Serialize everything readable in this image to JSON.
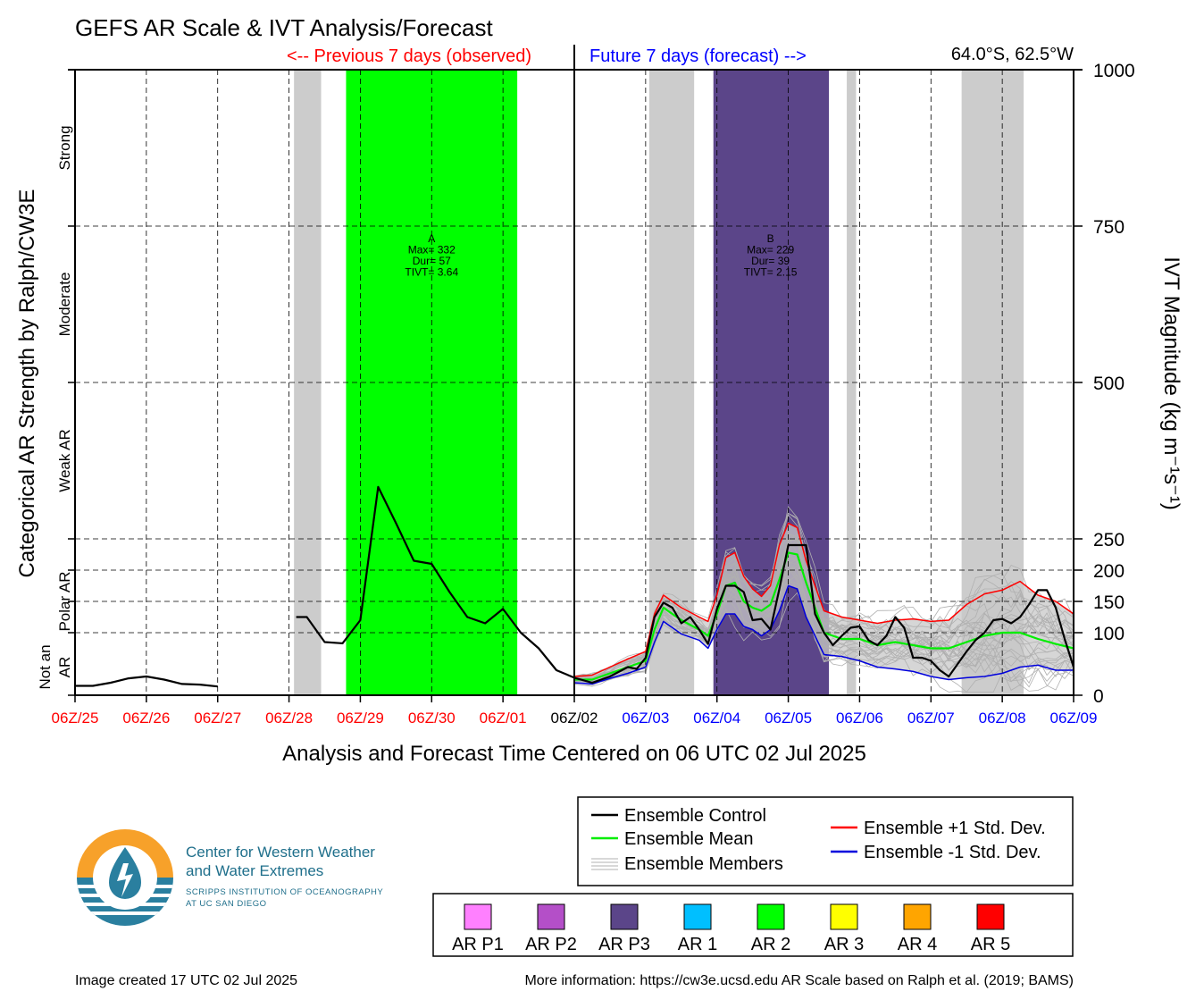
{
  "page": {
    "title": "GEFS AR Scale & IVT Analysis/Forecast",
    "prev_label": "<-- Previous 7 days (observed)",
    "future_label": "Future 7 days (forecast) -->",
    "location": "64.0°S, 62.5°W",
    "image_created": "Image created 17 UTC 02 Jul 2025",
    "more_info": "More information: https://cw3e.ucsd.edu AR Scale based on Ralph et al. (2019; BAMS)"
  },
  "colors": {
    "past_tick": "#ff0000",
    "future_tick": "#0000ff",
    "now_tick": "#000000",
    "control": "#000000",
    "mean": "#00ee00",
    "plus_std": "#ff0000",
    "minus_std": "#0000dd",
    "members": "#b0b0b0",
    "spread_fill": "#c8c8c8",
    "shade_gray": "#cccccc",
    "ar2": "#00ff00",
    "arp3": "#5b4589"
  },
  "logo": {
    "line1": "Center for Western Weather",
    "line2": "and Water Extremes",
    "line3": "SCRIPPS INSTITUTION OF OCEANOGRAPHY",
    "line4": "AT UC SAN DIEGO"
  },
  "legend": {
    "lines": [
      {
        "label": "Ensemble Control",
        "color": "#000000"
      },
      {
        "label": "Ensemble Mean",
        "color": "#00ee00"
      },
      {
        "label": "Ensemble Members",
        "color": "#b0b0b0"
      },
      {
        "label": "Ensemble +1 Std. Dev.",
        "color": "#ff0000"
      },
      {
        "label": "Ensemble -1 Std. Dev.",
        "color": "#0000dd"
      }
    ],
    "scale": [
      {
        "label": "AR P1",
        "color": "#ff80ff"
      },
      {
        "label": "AR P2",
        "color": "#b44fc8"
      },
      {
        "label": "AR P3",
        "color": "#5b4589"
      },
      {
        "label": "AR 1",
        "color": "#00bfff"
      },
      {
        "label": "AR 2",
        "color": "#00ff00"
      },
      {
        "label": "AR 3",
        "color": "#ffff00"
      },
      {
        "label": "AR 4",
        "color": "#ffa500"
      },
      {
        "label": "AR 5",
        "color": "#ff0000"
      }
    ]
  },
  "chart_data": {
    "type": "line",
    "xlabel": "Analysis and Forecast Time Centered on 06 UTC 02 Jul 2025",
    "ylabel_left": "Categorical AR Strength by Ralph/CW3E",
    "ylabel_right": "IVT Magnitude (kg m⁻¹s⁻¹)",
    "xlim": [
      -7,
      7
    ],
    "ylim": [
      0,
      1000
    ],
    "x_ticks": [
      {
        "x": -7,
        "label": "06Z/25",
        "kind": "past"
      },
      {
        "x": -6,
        "label": "06Z/26",
        "kind": "past"
      },
      {
        "x": -5,
        "label": "06Z/27",
        "kind": "past"
      },
      {
        "x": -4,
        "label": "06Z/28",
        "kind": "past"
      },
      {
        "x": -3,
        "label": "06Z/29",
        "kind": "past"
      },
      {
        "x": -2,
        "label": "06Z/30",
        "kind": "past"
      },
      {
        "x": -1,
        "label": "06Z/01",
        "kind": "past"
      },
      {
        "x": 0,
        "label": "06Z/02",
        "kind": "now"
      },
      {
        "x": 1,
        "label": "06Z/03",
        "kind": "future"
      },
      {
        "x": 2,
        "label": "06Z/04",
        "kind": "future"
      },
      {
        "x": 3,
        "label": "06Z/05",
        "kind": "future"
      },
      {
        "x": 4,
        "label": "06Z/06",
        "kind": "future"
      },
      {
        "x": 5,
        "label": "06Z/07",
        "kind": "future"
      },
      {
        "x": 6,
        "label": "06Z/08",
        "kind": "future"
      },
      {
        "x": 7,
        "label": "06Z/09",
        "kind": "future"
      }
    ],
    "y_ticks": [
      0,
      100,
      150,
      200,
      250,
      500,
      750,
      1000
    ],
    "categories": [
      {
        "label": "Not an",
        "y": 45
      },
      {
        "label": "AR",
        "y": 45
      },
      {
        "label": "Polar AR",
        "y": 150
      },
      {
        "label": "Weak AR",
        "y": 375
      },
      {
        "label": "Moderate",
        "y": 625
      },
      {
        "label": "Strong",
        "y": 875
      }
    ],
    "shaded_periods": [
      {
        "start": -3.93,
        "end": -3.55,
        "kind": "gray"
      },
      {
        "start": -3.2,
        "end": -0.8,
        "kind": "ar2"
      },
      {
        "start": 1.05,
        "end": 1.68,
        "kind": "gray"
      },
      {
        "start": 1.95,
        "end": 3.57,
        "kind": "arp3"
      },
      {
        "start": 3.82,
        "end": 3.95,
        "kind": "gray"
      },
      {
        "start": 5.43,
        "end": 6.3,
        "kind": "gray"
      }
    ],
    "events": [
      {
        "letter": "A",
        "max": "Max= 332",
        "dur": "Dur= 57",
        "tivt": "TIVT= 3.64",
        "x": -2.0,
        "y": 740
      },
      {
        "letter": "B",
        "max": "Max= 229",
        "dur": "Dur= 39",
        "tivt": "TIVT= 2.15",
        "x": 2.75,
        "y": 740
      }
    ],
    "series": {
      "control_past_a": [
        [
          -7,
          15
        ],
        [
          -6.75,
          15
        ],
        [
          -6.5,
          20
        ],
        [
          -6.25,
          27
        ],
        [
          -6,
          30
        ],
        [
          -5.75,
          25
        ],
        [
          -5.5,
          18
        ],
        [
          -5.25,
          17
        ],
        [
          -5,
          14
        ]
      ],
      "control_past_b": [
        [
          -3.9,
          125
        ],
        [
          -3.75,
          125
        ],
        [
          -3.5,
          85
        ],
        [
          -3.25,
          83
        ],
        [
          -3,
          120
        ],
        [
          -2.75,
          333
        ],
        [
          -2.5,
          275
        ],
        [
          -2.25,
          215
        ],
        [
          -2,
          210
        ],
        [
          -1.75,
          165
        ],
        [
          -1.5,
          125
        ],
        [
          -1.25,
          115
        ],
        [
          -1,
          138
        ],
        [
          -0.75,
          100
        ],
        [
          -0.5,
          75
        ],
        [
          -0.25,
          40
        ],
        [
          0,
          28
        ]
      ],
      "control_future": [
        [
          0,
          28
        ],
        [
          0.25,
          20
        ],
        [
          0.5,
          30
        ],
        [
          0.75,
          45
        ],
        [
          0.875,
          42
        ],
        [
          1,
          60
        ],
        [
          1.125,
          125
        ],
        [
          1.25,
          148
        ],
        [
          1.375,
          140
        ],
        [
          1.5,
          115
        ],
        [
          1.625,
          125
        ],
        [
          1.75,
          105
        ],
        [
          1.875,
          82
        ],
        [
          2,
          138
        ],
        [
          2.125,
          175
        ],
        [
          2.25,
          175
        ],
        [
          2.375,
          165
        ],
        [
          2.5,
          120
        ],
        [
          2.625,
          122
        ],
        [
          2.75,
          105
        ],
        [
          2.875,
          170
        ],
        [
          3,
          240
        ],
        [
          3.125,
          240
        ],
        [
          3.25,
          240
        ],
        [
          3.375,
          130
        ],
        [
          3.5,
          100
        ],
        [
          3.625,
          80
        ],
        [
          3.75,
          95
        ],
        [
          3.875,
          108
        ],
        [
          4,
          110
        ],
        [
          4.125,
          88
        ],
        [
          4.25,
          80
        ],
        [
          4.375,
          95
        ],
        [
          4.5,
          125
        ],
        [
          4.625,
          108
        ],
        [
          4.75,
          60
        ],
        [
          4.875,
          60
        ],
        [
          5,
          55
        ],
        [
          5.125,
          40
        ],
        [
          5.25,
          30
        ],
        [
          5.375,
          50
        ],
        [
          5.5,
          70
        ],
        [
          5.625,
          88
        ],
        [
          5.75,
          100
        ],
        [
          5.875,
          120
        ],
        [
          6,
          122
        ],
        [
          6.125,
          115
        ],
        [
          6.25,
          125
        ],
        [
          6.375,
          145
        ],
        [
          6.5,
          168
        ],
        [
          6.625,
          168
        ],
        [
          6.75,
          140
        ],
        [
          6.875,
          90
        ],
        [
          7,
          45
        ]
      ],
      "mean": [
        [
          0,
          25
        ],
        [
          0.25,
          25
        ],
        [
          0.5,
          35
        ],
        [
          0.75,
          45
        ],
        [
          1,
          55
        ],
        [
          1.125,
          105
        ],
        [
          1.25,
          140
        ],
        [
          1.5,
          120
        ],
        [
          1.75,
          105
        ],
        [
          1.875,
          95
        ],
        [
          2,
          130
        ],
        [
          2.125,
          175
        ],
        [
          2.25,
          180
        ],
        [
          2.375,
          150
        ],
        [
          2.5,
          140
        ],
        [
          2.625,
          135
        ],
        [
          2.75,
          145
        ],
        [
          2.875,
          185
        ],
        [
          3,
          228
        ],
        [
          3.125,
          225
        ],
        [
          3.25,
          180
        ],
        [
          3.5,
          100
        ],
        [
          3.75,
          90
        ],
        [
          4,
          90
        ],
        [
          4.25,
          80
        ],
        [
          4.5,
          85
        ],
        [
          4.75,
          80
        ],
        [
          5,
          75
        ],
        [
          5.25,
          75
        ],
        [
          5.5,
          85
        ],
        [
          5.75,
          95
        ],
        [
          6,
          100
        ],
        [
          6.25,
          100
        ],
        [
          6.5,
          90
        ],
        [
          6.75,
          82
        ],
        [
          7,
          75
        ]
      ],
      "plus_std": [
        [
          0,
          30
        ],
        [
          0.25,
          32
        ],
        [
          0.5,
          45
        ],
        [
          0.75,
          58
        ],
        [
          1,
          70
        ],
        [
          1.125,
          130
        ],
        [
          1.25,
          160
        ],
        [
          1.5,
          140
        ],
        [
          1.75,
          125
        ],
        [
          1.875,
          118
        ],
        [
          2,
          160
        ],
        [
          2.125,
          220
        ],
        [
          2.25,
          228
        ],
        [
          2.375,
          190
        ],
        [
          2.5,
          170
        ],
        [
          2.625,
          158
        ],
        [
          2.75,
          175
        ],
        [
          2.875,
          240
        ],
        [
          3,
          275
        ],
        [
          3.125,
          268
        ],
        [
          3.25,
          215
        ],
        [
          3.5,
          135
        ],
        [
          3.75,
          125
        ],
        [
          4,
          120
        ],
        [
          4.25,
          115
        ],
        [
          4.5,
          120
        ],
        [
          4.75,
          122
        ],
        [
          5,
          118
        ],
        [
          5.25,
          120
        ],
        [
          5.5,
          145
        ],
        [
          5.75,
          162
        ],
        [
          6,
          168
        ],
        [
          6.25,
          182
        ],
        [
          6.5,
          160
        ],
        [
          6.75,
          150
        ],
        [
          7,
          130
        ]
      ],
      "minus_std": [
        [
          0,
          20
        ],
        [
          0.25,
          18
        ],
        [
          0.5,
          27
        ],
        [
          0.75,
          35
        ],
        [
          1,
          45
        ],
        [
          1.125,
          85
        ],
        [
          1.25,
          118
        ],
        [
          1.5,
          98
        ],
        [
          1.75,
          88
        ],
        [
          1.875,
          75
        ],
        [
          2,
          105
        ],
        [
          2.125,
          130
        ],
        [
          2.25,
          130
        ],
        [
          2.375,
          110
        ],
        [
          2.5,
          105
        ],
        [
          2.625,
          95
        ],
        [
          2.75,
          105
        ],
        [
          2.875,
          135
        ],
        [
          3,
          175
        ],
        [
          3.125,
          170
        ],
        [
          3.25,
          125
        ],
        [
          3.5,
          65
        ],
        [
          3.75,
          62
        ],
        [
          4,
          55
        ],
        [
          4.25,
          45
        ],
        [
          4.5,
          42
        ],
        [
          4.75,
          38
        ],
        [
          5,
          30
        ],
        [
          5.25,
          25
        ],
        [
          5.5,
          28
        ],
        [
          5.75,
          30
        ],
        [
          6,
          35
        ],
        [
          6.25,
          45
        ],
        [
          6.5,
          48
        ],
        [
          6.75,
          40
        ],
        [
          7,
          40
        ]
      ]
    }
  }
}
